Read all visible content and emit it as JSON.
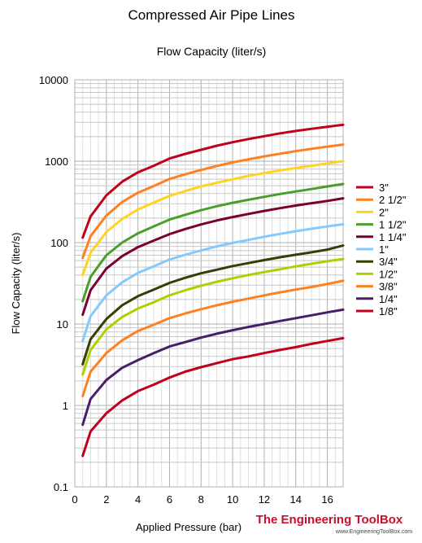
{
  "chart_data": {
    "type": "line",
    "title": "Compressed Air Pipe Lines",
    "subtitle": "Flow Capacity (liter/s)",
    "xlabel": "Applied Pressure (bar)",
    "ylabel": "Flow Capacity (liter/s)",
    "xlim": [
      0,
      17
    ],
    "ylim": [
      0.1,
      10000
    ],
    "yscale": "log",
    "grid": true,
    "legend_position": "right",
    "x_ticks": [
      "0",
      "2",
      "4",
      "6",
      "8",
      "10",
      "12",
      "14",
      "16"
    ],
    "y_ticks": [
      "0.1",
      "1",
      "10",
      "100",
      "1000",
      "10000"
    ],
    "x": [
      0.5,
      1,
      2,
      3,
      4,
      5,
      6,
      7,
      8,
      9,
      10,
      11,
      12,
      13,
      14,
      15,
      16,
      17
    ],
    "series": [
      {
        "name": "3\"",
        "color": "#c0001c",
        "values": [
          115,
          210,
          380,
          560,
          730,
          880,
          1080,
          1230,
          1380,
          1550,
          1710,
          1870,
          2030,
          2200,
          2350,
          2500,
          2650,
          2800
        ]
      },
      {
        "name": "2 1/2\"",
        "color": "#ff8020",
        "values": [
          65,
          120,
          215,
          315,
          410,
          495,
          605,
          690,
          780,
          875,
          965,
          1055,
          1145,
          1235,
          1330,
          1420,
          1510,
          1600
        ]
      },
      {
        "name": "2\"",
        "color": "#ffd320",
        "values": [
          40,
          75,
          135,
          195,
          255,
          310,
          375,
          430,
          490,
          545,
          600,
          660,
          715,
          770,
          825,
          880,
          940,
          1000
        ]
      },
      {
        "name": "1 1/2\"",
        "color": "#4b9e2b",
        "values": [
          19,
          38,
          70,
          100,
          130,
          158,
          192,
          220,
          250,
          280,
          308,
          336,
          365,
          395,
          425,
          455,
          490,
          525
        ]
      },
      {
        "name": "1 1/4\"",
        "color": "#7a0033",
        "values": [
          13,
          26,
          48,
          68,
          88,
          106,
          127,
          147,
          167,
          187,
          206,
          225,
          245,
          265,
          285,
          305,
          325,
          350
        ]
      },
      {
        "name": "1\"",
        "color": "#83caff",
        "values": [
          6.2,
          12.5,
          22.5,
          32.5,
          42.5,
          51,
          62,
          71,
          80,
          90,
          99,
          108,
          118,
          128,
          138,
          148,
          158,
          168
        ]
      },
      {
        "name": "3/4\"",
        "color": "#314004",
        "values": [
          3.2,
          6.5,
          11.5,
          17,
          22,
          26.5,
          32,
          37,
          42,
          46.5,
          51.5,
          56,
          61,
          66,
          71,
          76,
          82,
          92
        ]
      },
      {
        "name": "1/2\"",
        "color": "#aecf00",
        "values": [
          2.4,
          4.8,
          8.6,
          12.2,
          15.5,
          18.5,
          22.5,
          26,
          29.5,
          33,
          36.5,
          40,
          43.5,
          47,
          51,
          55,
          59,
          63
        ]
      },
      {
        "name": "3/8\"",
        "color": "#ff8020",
        "values": [
          1.3,
          2.6,
          4.4,
          6.3,
          8.2,
          9.8,
          11.8,
          13.5,
          15.2,
          17,
          18.8,
          20.5,
          22.5,
          24.5,
          26.5,
          28.5,
          31,
          34
        ]
      },
      {
        "name": "1/4\"",
        "color": "#481f67",
        "values": [
          0.58,
          1.2,
          2.05,
          2.9,
          3.6,
          4.4,
          5.3,
          6.0,
          6.8,
          7.6,
          8.4,
          9.2,
          10,
          10.9,
          11.8,
          12.8,
          13.9,
          15
        ]
      },
      {
        "name": "1/8\"",
        "color": "#c0001c",
        "values": [
          0.24,
          0.48,
          0.8,
          1.15,
          1.5,
          1.8,
          2.2,
          2.6,
          2.95,
          3.3,
          3.7,
          4.0,
          4.4,
          4.8,
          5.2,
          5.7,
          6.2,
          6.7
        ]
      }
    ]
  },
  "branding": {
    "name": "The Engineering ToolBox",
    "url": "www.EngineeringToolBox.com"
  }
}
